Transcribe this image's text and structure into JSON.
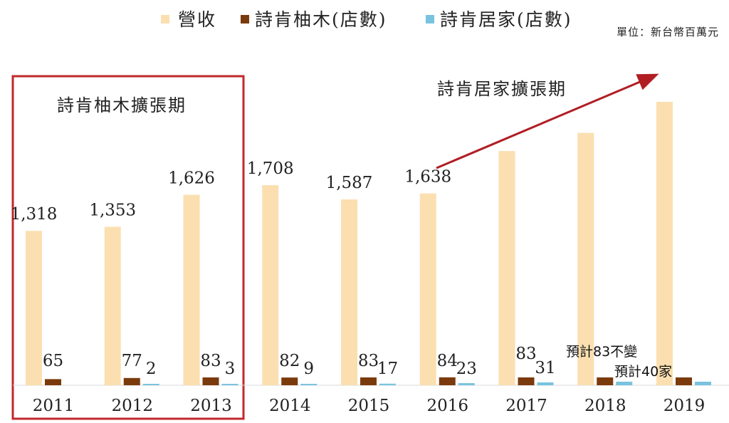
{
  "chart_data": {
    "type": "bar",
    "title": "",
    "unit_label": "單位：新台幣百萬元",
    "categories": [
      "2011",
      "2012",
      "2013",
      "2014",
      "2015",
      "2016",
      "2017",
      "2018",
      "2019"
    ],
    "series": [
      {
        "name": "營收",
        "color": "#fbdfb0",
        "values": [
          1318,
          1353,
          1626,
          1708,
          1587,
          1638,
          2000,
          2155,
          2420
        ],
        "labels": [
          "1,318",
          "1,353",
          "1,626",
          "1,708",
          "1,587",
          "1,638",
          "",
          "",
          ""
        ]
      },
      {
        "name": "詩肯柚木(店數)",
        "color": "#7b3a0c",
        "values": [
          65,
          77,
          83,
          82,
          83,
          84,
          83,
          83,
          83
        ],
        "labels": [
          "65",
          "77",
          "83",
          "82",
          "83",
          "84",
          "83",
          "",
          ""
        ]
      },
      {
        "name": "詩肯居家(店數)",
        "color": "#79c3de",
        "values": [
          0,
          2,
          3,
          9,
          17,
          23,
          31,
          40,
          40
        ],
        "labels": [
          "",
          "2",
          "3",
          "9",
          "17",
          "23",
          "31",
          "",
          ""
        ]
      }
    ],
    "ylim": [
      0,
      2500
    ],
    "legend_position": "top",
    "grid": false,
    "annotations": [
      {
        "text": "詩肯柚木擴張期",
        "kind": "box",
        "from": "2011",
        "to": "2013",
        "color": "#c0282d"
      },
      {
        "text": "詩肯居家擴張期",
        "kind": "arrow",
        "color": "#b01e24"
      },
      {
        "text": "預計83不變",
        "category": "2018"
      },
      {
        "text": "預計40家",
        "category": "2018"
      }
    ]
  }
}
